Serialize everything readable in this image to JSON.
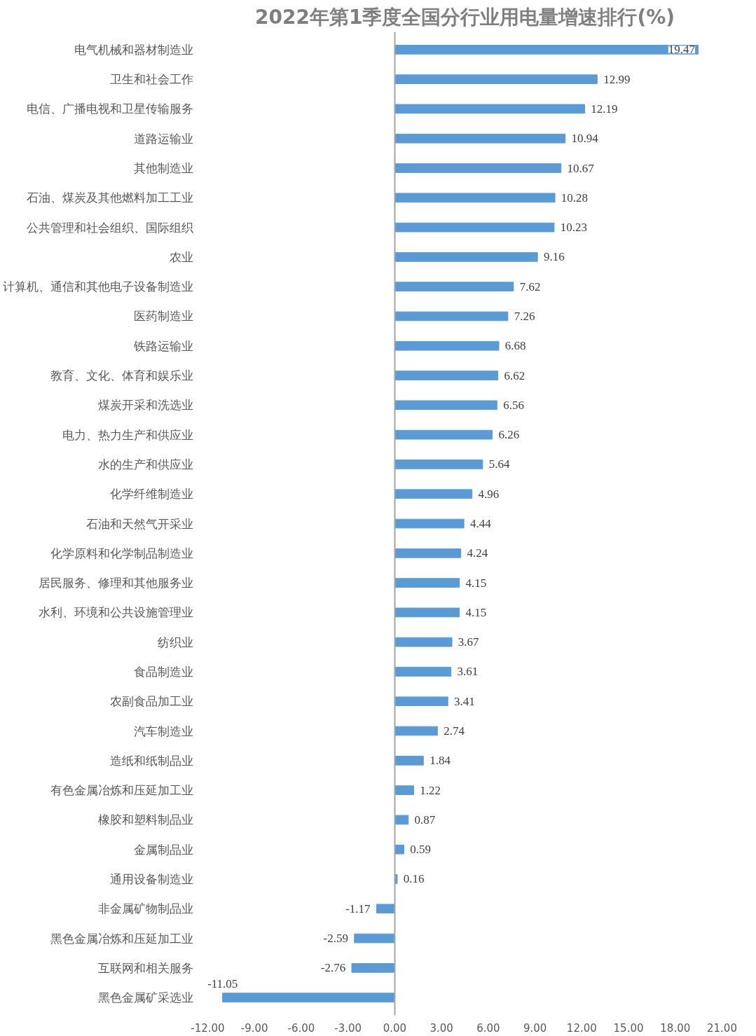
{
  "chart_data": {
    "type": "bar",
    "orientation": "horizontal",
    "title": "2022年第1季度全国分行业用电量增速排行(%)",
    "categories": [
      "电气机械和器材制造业",
      "卫生和社会工作",
      "电信、广播电视和卫星传输服务",
      "道路运输业",
      "其他制造业",
      "石油、煤炭及其他燃料加工工业",
      "公共管理和社会组织、国际组织",
      "农业",
      "计算机、通信和其他电子设备制造业",
      "医药制造业",
      "铁路运输业",
      "教育、文化、体育和娱乐业",
      "煤炭开采和洗选业",
      "电力、热力生产和供应业",
      "水的生产和供应业",
      "化学纤维制造业",
      "石油和天然气开采业",
      "化学原料和化学制品制造业",
      "居民服务、修理和其他服务业",
      "水利、环境和公共设施管理业",
      "纺织业",
      "食品制造业",
      "农副食品加工业",
      "汽车制造业",
      "造纸和纸制品业",
      "有色金属冶炼和压延加工业",
      "橡胶和塑料制品业",
      "金属制品业",
      "通用设备制造业",
      "非金属矿物制品业",
      "黑色金属冶炼和压延加工业",
      "互联网和相关服务",
      "黑色金属矿采选业"
    ],
    "values": [
      19.47,
      12.99,
      12.19,
      10.94,
      10.67,
      10.28,
      10.23,
      9.16,
      7.62,
      7.26,
      6.68,
      6.62,
      6.56,
      6.26,
      5.64,
      4.96,
      4.44,
      4.24,
      4.15,
      4.15,
      3.67,
      3.61,
      3.41,
      2.74,
      1.84,
      1.22,
      0.87,
      0.59,
      0.16,
      -1.17,
      -2.59,
      -2.76,
      -11.05
    ],
    "color": "#5b9bd5",
    "xlim": [
      -12,
      21
    ],
    "xticks": [
      {
        "value": -12,
        "label": "-12.00"
      },
      {
        "value": -9,
        "label": "-9.00"
      },
      {
        "value": -6,
        "label": "-6.00"
      },
      {
        "value": -3,
        "label": "-3.00"
      },
      {
        "value": 0,
        "label": "0.00"
      },
      {
        "value": 3,
        "label": "3.00"
      },
      {
        "value": 6,
        "label": "6.00"
      },
      {
        "value": 9,
        "label": "9.00"
      },
      {
        "value": 12,
        "label": "12.00"
      },
      {
        "value": 15,
        "label": "15.00"
      },
      {
        "value": 18,
        "label": "18.00"
      },
      {
        "value": 21,
        "label": "21.00"
      }
    ],
    "data_labels": true
  }
}
